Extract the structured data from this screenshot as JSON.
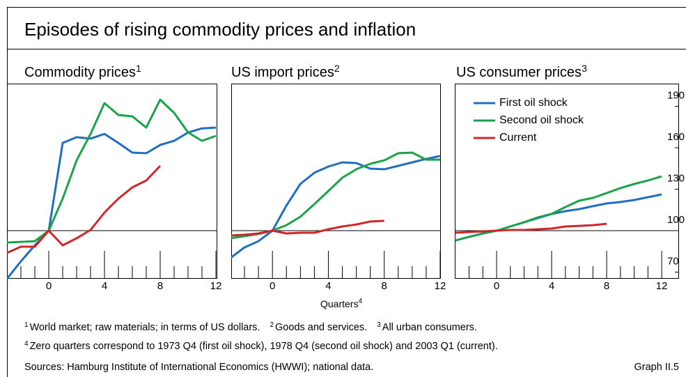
{
  "figure": {
    "title": "Episodes of rising commodity prices and inflation",
    "x_label": "Quarters",
    "x_label_note": "4",
    "footnotes": [
      [
        {
          "marker": "1",
          "text": "World market; raw materials; in terms of US dollars."
        },
        {
          "marker": "2",
          "text": "Goods and services."
        },
        {
          "marker": "3",
          "text": "All urban consumers."
        }
      ],
      [
        {
          "marker": "4",
          "text": "Zero quarters correspond to 1973 Q4 (first oil shock), 1978 Q4 (second oil shock) and 2003 Q1 (current)."
        }
      ]
    ],
    "sources": "Sources: Hamburg Institute of International Economics (HWWI); national data.",
    "graph_label": "Graph II.5"
  },
  "chart_data": [
    {
      "type": "line",
      "title": "Commodity prices",
      "title_note": "1",
      "x": [
        -3,
        -2,
        -1,
        0,
        1,
        2,
        3,
        4,
        5,
        6,
        7,
        8,
        9,
        10,
        11,
        12
      ],
      "xlim": [
        -3,
        12.1
      ],
      "xticks": [
        0,
        4,
        8,
        12
      ],
      "xticks_minor": [
        -2,
        -1,
        1,
        2,
        3,
        5,
        6,
        7,
        9,
        10,
        11
      ],
      "ylim": [
        65.2,
        206.4
      ],
      "reference_line": 100,
      "series": [
        {
          "name": "First oil shock",
          "color": "#1f6fc0",
          "values": [
            65.2,
            77.8,
            89.4,
            100,
            163.5,
            167.6,
            166.6,
            170,
            163.5,
            156.5,
            156,
            162,
            165,
            171,
            174,
            174.6
          ]
        },
        {
          "name": "Second oil shock",
          "color": "#1aa34a",
          "values": [
            91.4,
            91.9,
            92.4,
            100,
            123.2,
            150.9,
            170,
            192.3,
            183.7,
            182.7,
            174.6,
            194.8,
            185.2,
            171.1,
            165,
            168.6
          ]
        },
        {
          "name": "Current",
          "color": "#d0262a",
          "values": [
            83.9,
            88.4,
            88.4,
            100,
            89.4,
            94.5,
            100.5,
            113.1,
            123.2,
            131.3,
            136.3,
            146.9,
            null,
            null,
            null,
            null
          ]
        }
      ]
    },
    {
      "type": "line",
      "title": "US import prices",
      "title_note": "2",
      "x": [
        -3,
        -2,
        -1,
        0,
        1,
        2,
        3,
        4,
        5,
        6,
        7,
        8,
        9,
        10,
        11,
        12
      ],
      "xlim": [
        -2.95,
        12.05
      ],
      "xticks": [
        0,
        4,
        8,
        12
      ],
      "xticks_minor": [
        -2,
        -1,
        1,
        2,
        3,
        5,
        6,
        7,
        9,
        10,
        11
      ],
      "ylim": [
        65.2,
        206.4
      ],
      "reference_line": 100,
      "series": [
        {
          "name": "First oil shock",
          "color": "#1f6fc0",
          "values": [
            80.3,
            87.9,
            92.4,
            100,
            118.2,
            133.8,
            141.9,
            146.4,
            149.4,
            148.9,
            144.9,
            144.4,
            146.9,
            149.4,
            151.9,
            154
          ]
        },
        {
          "name": "Second oil shock",
          "color": "#1aa34a",
          "values": [
            94.5,
            96,
            97.5,
            100,
            104,
            110.1,
            119.2,
            128.7,
            138.3,
            144.4,
            148.4,
            150.9,
            156,
            156.5,
            151.4,
            151.4
          ]
        },
        {
          "name": "Current",
          "color": "#d0262a",
          "values": [
            96.5,
            97,
            98,
            100,
            98,
            98.5,
            98.5,
            101,
            103,
            104.5,
            106.6,
            107.1,
            null,
            null,
            null,
            null
          ]
        }
      ]
    },
    {
      "type": "line",
      "title": "US consumer prices",
      "title_note": "3",
      "x": [
        -3,
        -2,
        -1,
        0,
        1,
        2,
        3,
        4,
        5,
        6,
        7,
        8,
        9,
        10,
        11,
        12
      ],
      "xlim": [
        -3.04,
        13.26
      ],
      "xticks": [
        0,
        4,
        8,
        12
      ],
      "xticks_minor": [
        -2,
        -1,
        1,
        2,
        3,
        5,
        6,
        7,
        9,
        10,
        11
      ],
      "ylim": [
        65.2,
        206.4
      ],
      "yticks": [
        70,
        100,
        130,
        160,
        190
      ],
      "reference_line": 100,
      "legend": "upper left",
      "series": [
        {
          "name": "First oil shock",
          "color": "#1f6fc0",
          "values": [
            92.9,
            95.5,
            98,
            100,
            103,
            106.1,
            109.1,
            112.1,
            114.1,
            115.6,
            117.7,
            119.7,
            120.7,
            122.2,
            124.2,
            126.2
          ]
        },
        {
          "name": "Second oil shock",
          "color": "#1aa34a",
          "values": [
            92.9,
            95.5,
            98,
            100,
            103,
            106.1,
            109.6,
            112.1,
            117.1,
            121.7,
            123.7,
            127.2,
            130.8,
            133.8,
            136.3,
            139.3
          ]
        },
        {
          "name": "Current",
          "color": "#d0262a",
          "values": [
            98.5,
            99,
            99.5,
            100,
            100.5,
            100.5,
            101,
            101.5,
            103,
            103.5,
            104,
            105,
            null,
            null,
            null,
            null
          ]
        }
      ]
    }
  ]
}
